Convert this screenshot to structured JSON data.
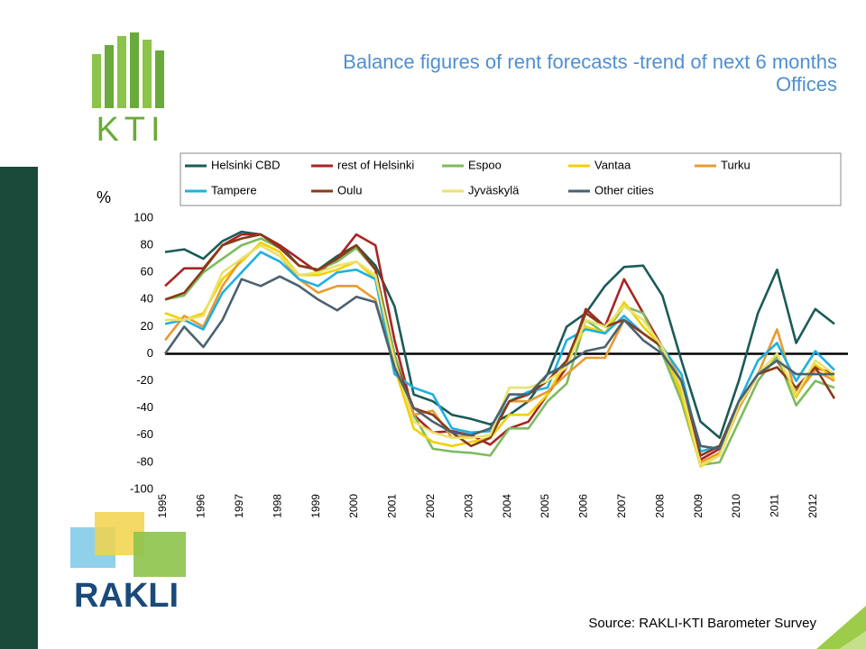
{
  "logos": {
    "top": "KTI",
    "bottom": "RAKLI"
  },
  "chart_data": {
    "type": "line",
    "title": "Balance figures of rent forecasts -trend of next 6 months",
    "subtitle": "Offices",
    "y_label": "%",
    "source": "Source: RAKLI-KTI Barometer Survey",
    "x": [
      1995,
      1995.5,
      1996,
      1996.5,
      1997,
      1997.5,
      1998,
      1998.5,
      1999,
      1999.5,
      2000,
      2000.5,
      2001,
      2001.5,
      2002,
      2002.5,
      2003,
      2003.5,
      2004,
      2004.5,
      2005,
      2005.5,
      2006,
      2006.5,
      2007,
      2007.5,
      2008,
      2008.5,
      2009,
      2009.5,
      2010,
      2010.5,
      2011,
      2011.5,
      2012,
      2012.5
    ],
    "xlim": [
      1995,
      2012.5
    ],
    "xticks": [
      1995,
      1996,
      1997,
      1998,
      1999,
      2000,
      2001,
      2002,
      2003,
      2004,
      2005,
      2006,
      2007,
      2008,
      2009,
      2010,
      2011,
      2012
    ],
    "ylim": [
      -100,
      100
    ],
    "yticks": [
      -100,
      -80,
      -60,
      -40,
      -20,
      0,
      20,
      40,
      60,
      80,
      100
    ],
    "grid": false,
    "series": [
      {
        "name": "Helsinki CBD",
        "color": "#1b5b57",
        "values": [
          75,
          77,
          70,
          83,
          90,
          88,
          80,
          65,
          62,
          72,
          80,
          65,
          35,
          -30,
          -35,
          -45,
          -48,
          -52,
          -45,
          -35,
          -15,
          20,
          30,
          50,
          64,
          65,
          43,
          -5,
          -50,
          -62,
          -20,
          30,
          62,
          8,
          33,
          22
        ]
      },
      {
        "name": "rest of Helsinki",
        "color": "#a82424",
        "values": [
          50,
          63,
          63,
          80,
          88,
          88,
          80,
          70,
          60,
          70,
          88,
          80,
          10,
          -45,
          -58,
          -57,
          -60,
          -67,
          -55,
          -50,
          -30,
          -10,
          33,
          20,
          55,
          30,
          5,
          -30,
          -78,
          -70,
          -40,
          -15,
          -5,
          -28,
          -10,
          -15
        ]
      },
      {
        "name": "Espoo",
        "color": "#7dbb5f",
        "values": [
          40,
          43,
          60,
          70,
          80,
          85,
          78,
          65,
          62,
          68,
          78,
          62,
          0,
          -45,
          -70,
          -72,
          -73,
          -75,
          -55,
          -55,
          -35,
          -22,
          25,
          15,
          35,
          30,
          0,
          -35,
          -82,
          -80,
          -50,
          -20,
          -2,
          -38,
          -20,
          -25
        ]
      },
      {
        "name": "Vantaa",
        "color": "#f2d100",
        "values": [
          30,
          25,
          30,
          55,
          68,
          82,
          75,
          58,
          58,
          62,
          68,
          55,
          -10,
          -55,
          -65,
          -68,
          -65,
          -62,
          -45,
          -45,
          -30,
          -5,
          20,
          15,
          38,
          20,
          5,
          -30,
          -83,
          -75,
          -40,
          -15,
          0,
          -32,
          -8,
          -18
        ]
      },
      {
        "name": "Turku",
        "color": "#e99a2e",
        "values": [
          10,
          28,
          20,
          50,
          70,
          80,
          72,
          55,
          45,
          50,
          50,
          40,
          -10,
          -45,
          -42,
          -62,
          -60,
          -55,
          -35,
          -35,
          -28,
          -15,
          -3,
          -3,
          25,
          15,
          5,
          -20,
          -80,
          -73,
          -40,
          -15,
          18,
          -30,
          -12,
          -20
        ]
      },
      {
        "name": "Tampere",
        "color": "#1fb0e0",
        "values": [
          22,
          25,
          18,
          45,
          60,
          75,
          68,
          55,
          50,
          60,
          62,
          55,
          -15,
          -25,
          -30,
          -55,
          -58,
          -57,
          -35,
          -28,
          -25,
          10,
          18,
          15,
          28,
          15,
          5,
          -15,
          -72,
          -68,
          -35,
          -5,
          8,
          -20,
          2,
          -12
        ]
      },
      {
        "name": "Oulu",
        "color": "#8a3a18",
        "values": [
          40,
          45,
          62,
          80,
          85,
          88,
          78,
          65,
          62,
          70,
          80,
          62,
          -5,
          -40,
          -45,
          -58,
          -68,
          -62,
          -35,
          -30,
          -20,
          -5,
          30,
          20,
          25,
          15,
          5,
          -25,
          -75,
          -68,
          -35,
          -15,
          -10,
          -25,
          -10,
          -33
        ]
      },
      {
        "name": "Jyväskylä",
        "color": "#e9e26e",
        "values": [
          25,
          25,
          28,
          60,
          70,
          80,
          72,
          58,
          60,
          65,
          68,
          58,
          -5,
          -50,
          -58,
          -62,
          -62,
          -60,
          -25,
          -25,
          -20,
          -10,
          25,
          20,
          35,
          25,
          5,
          -25,
          -82,
          -75,
          -38,
          -15,
          0,
          -30,
          -5,
          -15
        ]
      },
      {
        "name": "Other cities",
        "color": "#4b6171",
        "values": [
          0,
          20,
          5,
          25,
          55,
          50,
          57,
          50,
          40,
          32,
          42,
          38,
          -10,
          -40,
          -50,
          -58,
          -60,
          -55,
          -30,
          -30,
          -15,
          -8,
          2,
          5,
          25,
          10,
          0,
          -20,
          -68,
          -70,
          -35,
          -15,
          -5,
          -15,
          -15,
          -15
        ]
      }
    ]
  }
}
